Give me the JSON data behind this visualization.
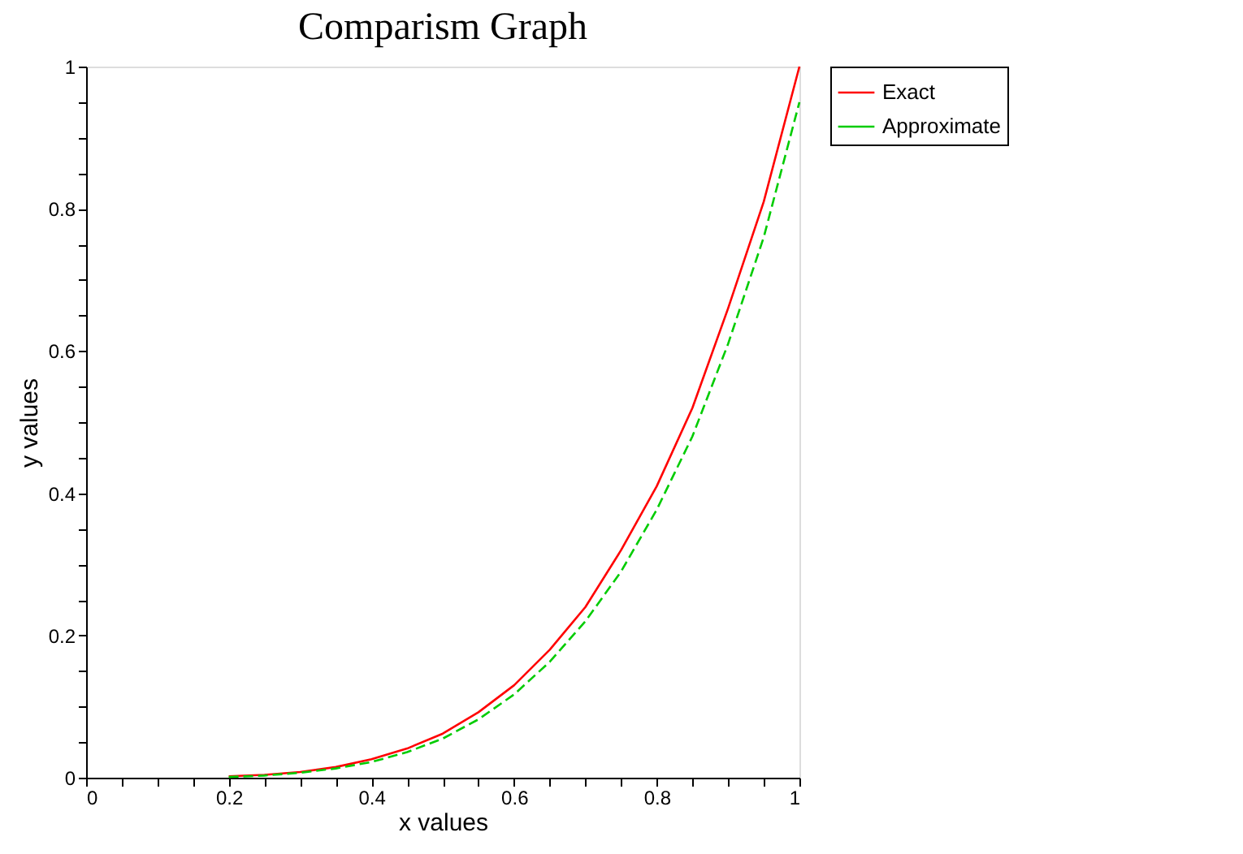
{
  "chart_data": {
    "type": "line",
    "title": "Comparism Graph",
    "xlabel": "x values",
    "ylabel": "y values",
    "x": [
      0.2,
      0.25,
      0.3,
      0.35,
      0.4,
      0.45,
      0.5,
      0.55,
      0.6,
      0.65,
      0.7,
      0.75,
      0.8,
      0.85,
      0.9,
      0.95,
      1.0
    ],
    "series": [
      {
        "name": "Exact",
        "color": "#ff0000",
        "line_style": "solid",
        "values": [
          0.002,
          0.004,
          0.008,
          0.015,
          0.026,
          0.041,
          0.062,
          0.092,
          0.13,
          0.18,
          0.24,
          0.32,
          0.41,
          0.52,
          0.66,
          0.81,
          1.0
        ]
      },
      {
        "name": "Approximate",
        "color": "#00cc00",
        "line_style": "dashed",
        "values": [
          0.001,
          0.003,
          0.007,
          0.013,
          0.022,
          0.036,
          0.055,
          0.082,
          0.117,
          0.163,
          0.22,
          0.29,
          0.377,
          0.48,
          0.61,
          0.76,
          0.95
        ]
      }
    ],
    "xlim": [
      0,
      1
    ],
    "ylim": [
      0,
      1
    ],
    "xticks": [
      0,
      {
        "value": 0.05,
        "label": null
      },
      {
        "value": 0.1,
        "label": null
      },
      {
        "value": 0.15,
        "label": null
      },
      0.2,
      {
        "value": 0.25,
        "label": null
      },
      {
        "value": 0.3,
        "label": null
      },
      {
        "value": 0.35,
        "label": null
      },
      0.4,
      {
        "value": 0.45,
        "label": null
      },
      {
        "value": 0.5,
        "label": null
      },
      {
        "value": 0.55,
        "label": null
      },
      0.6,
      {
        "value": 0.65,
        "label": null
      },
      {
        "value": 0.7,
        "label": null
      },
      {
        "value": 0.75,
        "label": null
      },
      0.8,
      {
        "value": 0.85,
        "label": null
      },
      {
        "value": 0.9,
        "label": null
      },
      {
        "value": 0.95,
        "label": null
      },
      1
    ],
    "yticks": [
      0,
      {
        "value": 0.05,
        "label": null
      },
      {
        "value": 0.1,
        "label": null
      },
      {
        "value": 0.15,
        "label": null
      },
      0.2,
      {
        "value": 0.25,
        "label": null
      },
      {
        "value": 0.3,
        "label": null
      },
      {
        "value": 0.35,
        "label": null
      },
      0.4,
      {
        "value": 0.45,
        "label": null
      },
      {
        "value": 0.5,
        "label": null
      },
      {
        "value": 0.55,
        "label": null
      },
      0.6,
      {
        "value": 0.65,
        "label": null
      },
      {
        "value": 0.7,
        "label": null
      },
      {
        "value": 0.75,
        "label": null
      },
      0.8,
      {
        "value": 0.85,
        "label": null
      },
      {
        "value": 0.9,
        "label": null
      },
      {
        "value": 0.95,
        "label": null
      },
      1
    ],
    "grid": false,
    "legend": "right",
    "marker": "none"
  }
}
